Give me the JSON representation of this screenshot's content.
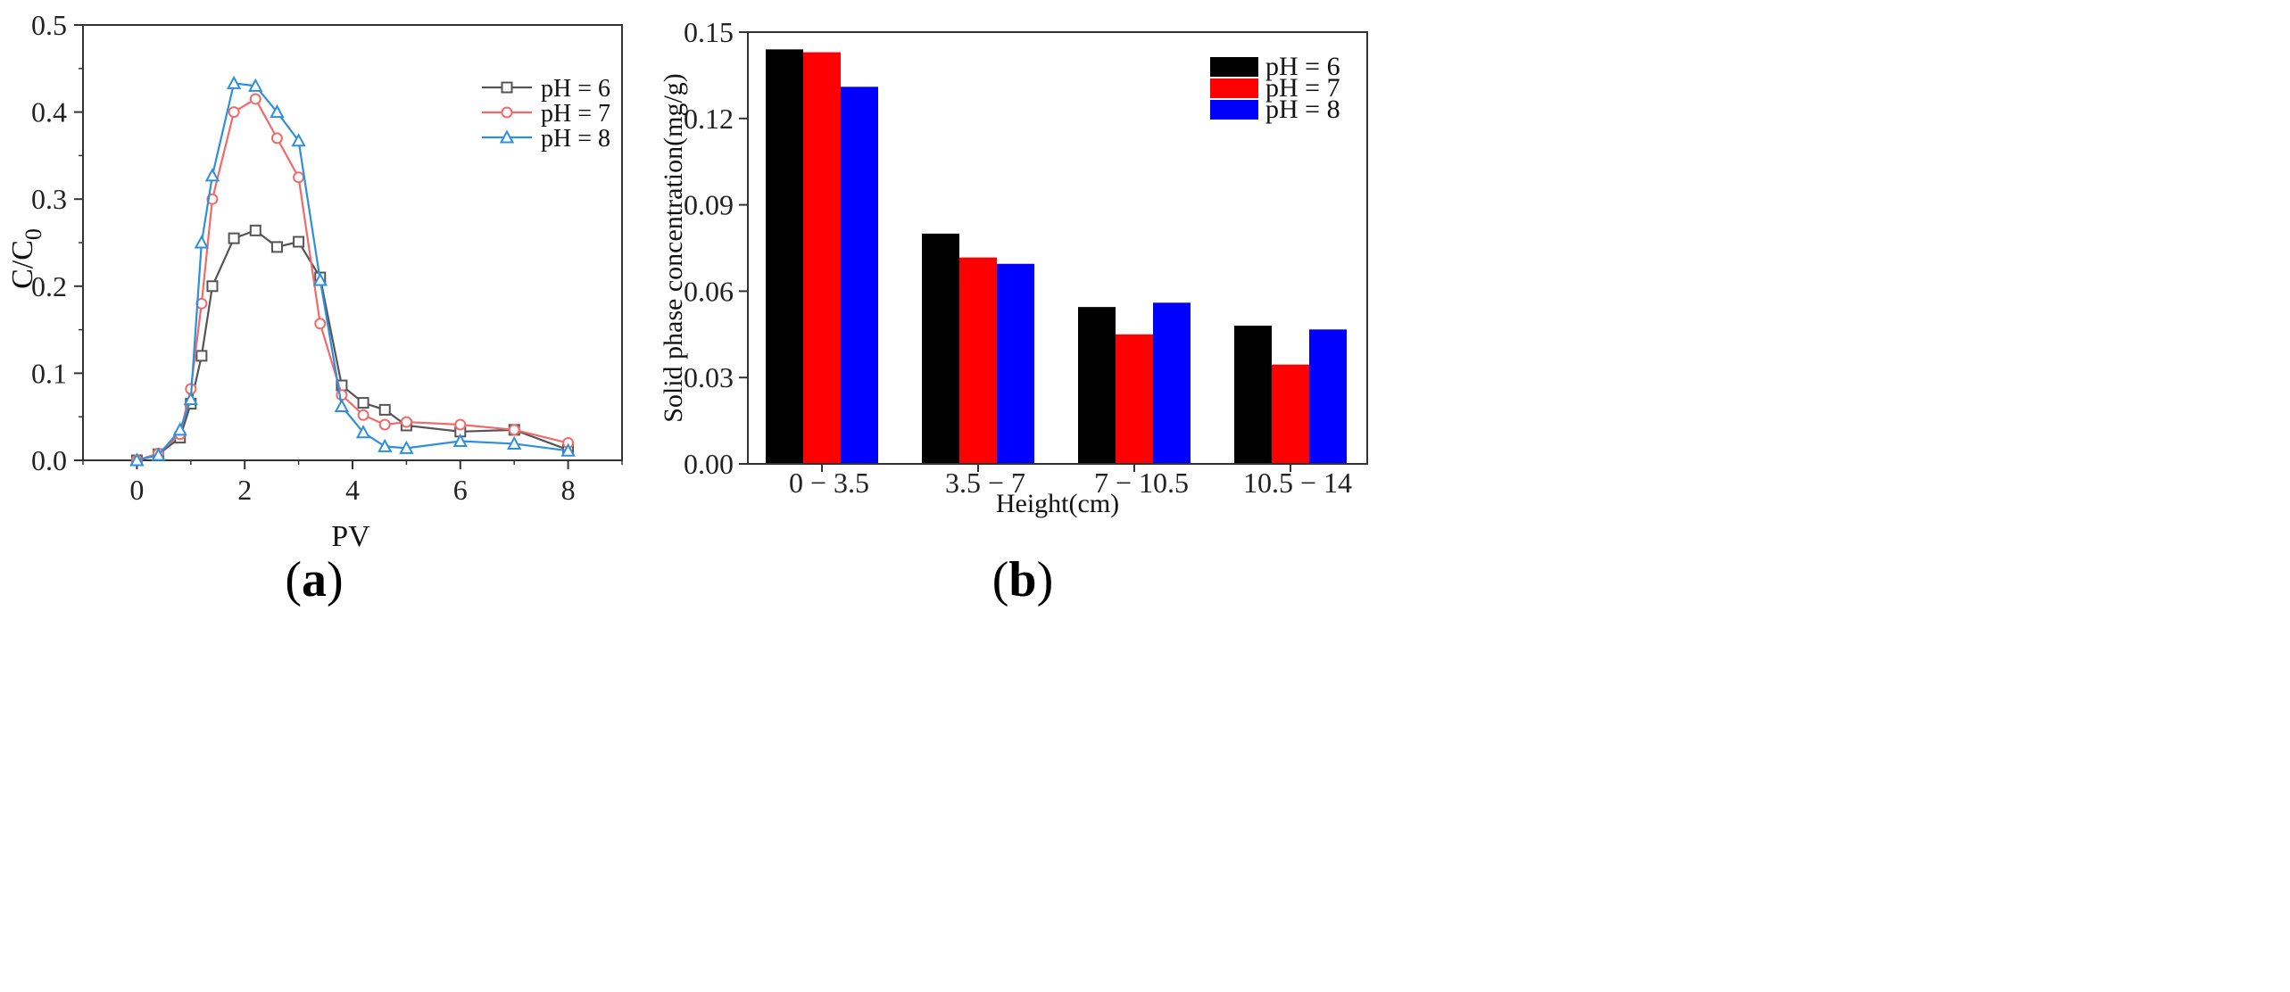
{
  "chart_data": [
    {
      "type": "line",
      "xlabel": "PV",
      "ylabel": "C/C",
      "ylabel_subscript": "0",
      "xlim": [
        -1,
        9
      ],
      "ylim": [
        0,
        0.5
      ],
      "xticks": [
        "0",
        "2",
        "4",
        "6",
        "8"
      ],
      "yticks": [
        "0.0",
        "0.1",
        "0.2",
        "0.3",
        "0.4",
        "0.5"
      ],
      "legend_position": "top-right",
      "series": [
        {
          "name": "pH = 6",
          "color": "#555555",
          "marker": "square",
          "x": [
            0,
            0.4,
            0.8,
            1.0,
            1.2,
            1.4,
            1.8,
            2.2,
            2.6,
            3.0,
            3.4,
            3.8,
            4.2,
            4.6,
            5.0,
            6.0,
            7.0,
            8.0
          ],
          "y": [
            0.0,
            0.007,
            0.026,
            0.065,
            0.12,
            0.2,
            0.255,
            0.264,
            0.245,
            0.251,
            0.21,
            0.086,
            0.066,
            0.058,
            0.04,
            0.033,
            0.035,
            0.012
          ]
        },
        {
          "name": "pH = 7",
          "color": "#f06a6a",
          "marker": "circle",
          "x": [
            0,
            0.4,
            0.8,
            1.0,
            1.2,
            1.4,
            1.8,
            2.2,
            2.6,
            3.0,
            3.4,
            3.8,
            4.2,
            4.6,
            5.0,
            6.0,
            7.0,
            8.0
          ],
          "y": [
            0.0,
            0.008,
            0.03,
            0.082,
            0.18,
            0.3,
            0.4,
            0.415,
            0.37,
            0.325,
            0.157,
            0.075,
            0.052,
            0.041,
            0.044,
            0.041,
            0.035,
            0.02
          ]
        },
        {
          "name": "pH = 8",
          "color": "#2e8fdc",
          "marker": "triangle",
          "x": [
            0,
            0.4,
            0.8,
            1.0,
            1.2,
            1.4,
            1.8,
            2.2,
            2.6,
            3.0,
            3.4,
            3.8,
            4.2,
            4.6,
            5.0,
            6.0,
            7.0,
            8.0
          ],
          "y": [
            0.0,
            0.006,
            0.035,
            0.07,
            0.25,
            0.327,
            0.433,
            0.43,
            0.4,
            0.367,
            0.207,
            0.062,
            0.032,
            0.016,
            0.014,
            0.022,
            0.019,
            0.011
          ]
        }
      ],
      "panel_label": "a"
    },
    {
      "type": "bar",
      "xlabel": "Height(cm)",
      "ylabel": "Solid phase concentration(mg/g)",
      "ylim": [
        0,
        0.15
      ],
      "yticks": [
        "0.00",
        "0.03",
        "0.06",
        "0.09",
        "0.12",
        "0.15"
      ],
      "categories": [
        "0 − 3.5",
        "3.5 − 7",
        "7 − 10.5",
        "10.5 − 14"
      ],
      "legend_position": "top-right",
      "series": [
        {
          "name": "pH = 6",
          "color": "#000000",
          "values": [
            0.144,
            0.08,
            0.0545,
            0.048
          ]
        },
        {
          "name": "pH = 7",
          "color": "#ff0000",
          "values": [
            0.143,
            0.0717,
            0.045,
            0.0345
          ]
        },
        {
          "name": "pH = 8",
          "color": "#0000ff",
          "values": [
            0.131,
            0.0695,
            0.056,
            0.0467
          ]
        }
      ],
      "panel_label": "b"
    }
  ]
}
